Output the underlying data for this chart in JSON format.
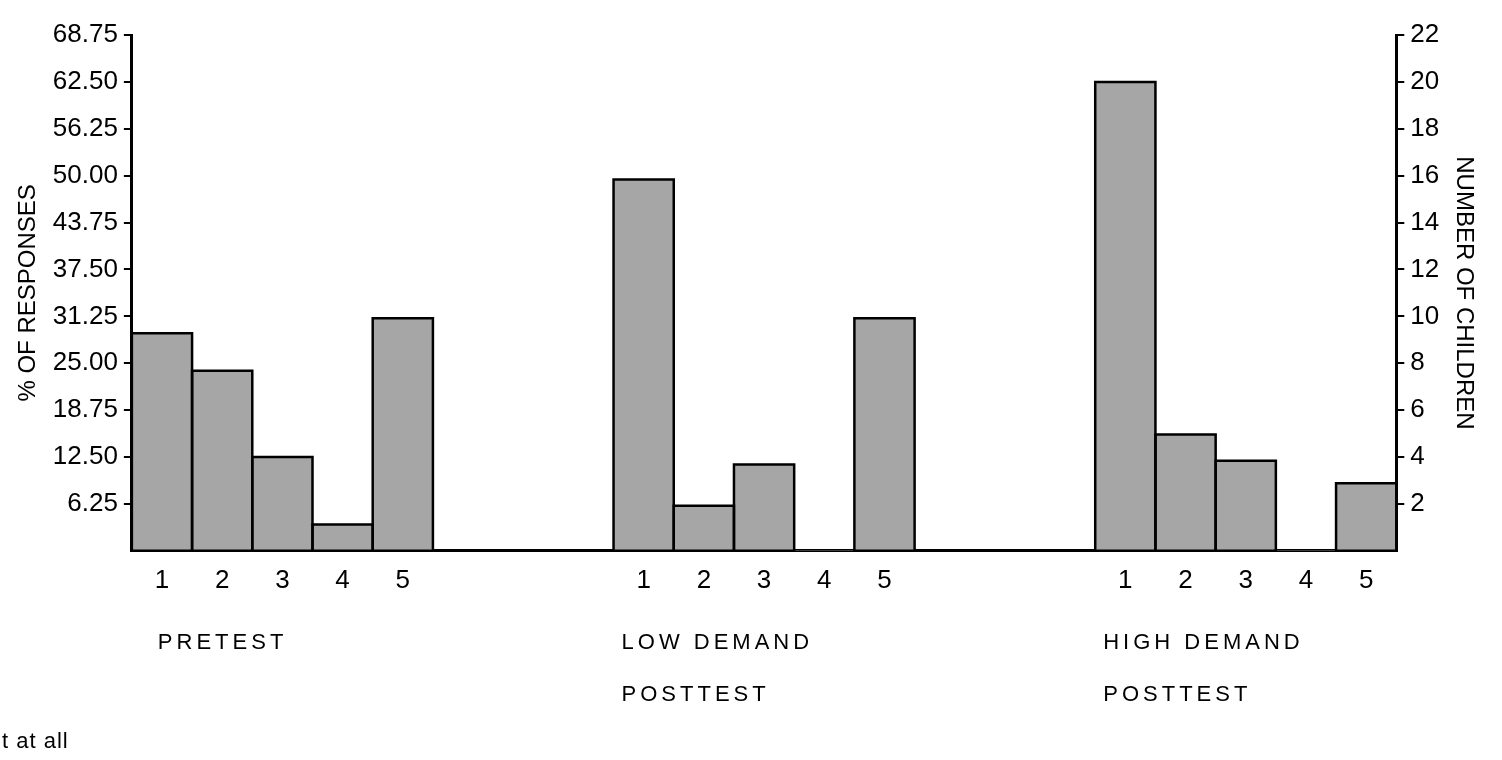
{
  "chart_data": {
    "type": "bar",
    "ylabel": "% OF RESPONSES",
    "y2label": "NUMBER OF CHILDREN",
    "categories": [
      "1",
      "2",
      "3",
      "4",
      "5",
      null,
      null,
      null,
      "1",
      "2",
      "3",
      "4",
      "5",
      null,
      null,
      null,
      "1",
      "2",
      "3",
      "4",
      "5"
    ],
    "series": [
      {
        "color": "#a6a6a6",
        "values": [
          29,
          24,
          12.5,
          3.5,
          31,
          null,
          null,
          null,
          49.5,
          6,
          11.5,
          0,
          31,
          null,
          null,
          null,
          62.5,
          15.5,
          12,
          0,
          9
        ]
      }
    ],
    "ylim": [
      0,
      68.75
    ],
    "yticks": [
      {
        "value": 6.25,
        "label": "6.25"
      },
      {
        "value": 12.5,
        "label": "12.50"
      },
      {
        "value": 18.75,
        "label": "18.75"
      },
      {
        "value": 25,
        "label": "25.00"
      },
      {
        "value": 31.25,
        "label": "31.25"
      },
      {
        "value": 37.5,
        "label": "37.50"
      },
      {
        "value": 43.75,
        "label": "43.75"
      },
      {
        "value": 50,
        "label": "50.00"
      },
      {
        "value": 56.25,
        "label": "56.25"
      },
      {
        "value": 62.5,
        "label": "62.50"
      },
      {
        "value": 68.75,
        "label": "68.75"
      }
    ],
    "y2lim": [
      0,
      22
    ],
    "y2ticks": [
      2,
      4,
      6,
      8,
      10,
      12,
      14,
      16,
      18,
      20,
      22
    ],
    "annotations": [
      "PRETEST",
      "LOW DEMAND POSTTEST",
      "HIGH DEMAND POSTTEST",
      "t at all"
    ],
    "grid": false,
    "legend": false
  }
}
